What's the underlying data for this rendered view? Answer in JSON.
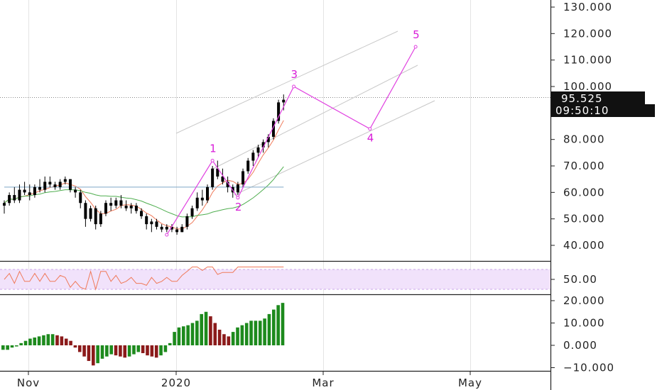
{
  "chart_data": [
    {
      "type": "candlestick",
      "panel": "price",
      "y_ticks": [
        "130.000",
        "120.000",
        "110.000",
        "100.000",
        "80.000",
        "70.000",
        "60.000",
        "50.000",
        "40.000"
      ],
      "ylim": [
        35,
        133
      ],
      "price_line": 95.525,
      "badges": {
        "price": "95.525",
        "time": "09:50:10"
      },
      "x_ticks": [
        "Nov",
        "2020",
        "Mar",
        "May"
      ],
      "candles": [
        [
          0,
          55,
          57,
          52,
          56
        ],
        [
          1,
          56,
          60,
          55,
          59
        ],
        [
          2,
          59,
          62,
          56,
          57
        ],
        [
          3,
          57,
          63,
          56,
          61
        ],
        [
          4,
          61,
          64,
          59,
          60
        ],
        [
          5,
          60,
          63,
          57,
          59
        ],
        [
          6,
          59,
          63,
          58,
          62
        ],
        [
          7,
          62,
          65,
          60,
          61
        ],
        [
          8,
          61,
          66,
          60,
          64
        ],
        [
          9,
          64,
          66,
          62,
          63
        ],
        [
          10,
          63,
          64,
          61,
          62
        ],
        [
          11,
          62,
          65,
          61,
          64
        ],
        [
          12,
          64,
          66,
          63,
          65
        ],
        [
          13,
          65,
          65,
          60,
          61
        ],
        [
          14,
          61,
          62,
          58,
          60
        ],
        [
          15,
          60,
          61,
          54,
          56
        ],
        [
          16,
          56,
          57,
          47,
          50
        ],
        [
          17,
          50,
          55,
          49,
          54
        ],
        [
          18,
          54,
          55,
          46,
          48
        ],
        [
          19,
          48,
          53,
          47,
          52
        ],
        [
          20,
          52,
          57,
          51,
          56
        ],
        [
          21,
          56,
          58,
          53,
          55
        ],
        [
          22,
          55,
          58,
          54,
          57
        ],
        [
          23,
          57,
          59,
          54,
          55
        ],
        [
          24,
          55,
          57,
          53,
          54
        ],
        [
          25,
          54,
          56,
          52,
          55
        ],
        [
          26,
          55,
          56,
          52,
          53
        ],
        [
          27,
          53,
          54,
          50,
          51
        ],
        [
          28,
          51,
          52,
          46,
          48
        ],
        [
          29,
          48,
          50,
          45,
          49
        ],
        [
          30,
          49,
          50,
          46,
          47
        ],
        [
          31,
          47,
          48,
          45,
          46
        ],
        [
          32,
          46,
          48,
          45,
          47
        ],
        [
          33,
          47,
          48,
          45,
          46
        ],
        [
          34,
          46,
          47,
          44,
          45
        ],
        [
          35,
          45,
          48,
          45,
          47
        ],
        [
          36,
          47,
          52,
          46,
          51
        ],
        [
          37,
          51,
          55,
          50,
          54
        ],
        [
          38,
          54,
          60,
          53,
          58
        ],
        [
          39,
          58,
          61,
          55,
          57
        ],
        [
          40,
          57,
          63,
          56,
          62
        ],
        [
          41,
          62,
          70,
          61,
          69
        ],
        [
          42,
          69,
          72,
          65,
          66
        ],
        [
          43,
          66,
          69,
          63,
          64
        ],
        [
          44,
          64,
          66,
          60,
          62
        ],
        [
          45,
          62,
          63,
          58,
          60
        ],
        [
          46,
          60,
          64,
          59,
          63
        ],
        [
          47,
          63,
          69,
          62,
          68
        ],
        [
          48,
          68,
          73,
          67,
          72
        ],
        [
          49,
          72,
          76,
          70,
          75
        ],
        [
          50,
          75,
          78,
          73,
          77
        ],
        [
          51,
          77,
          80,
          75,
          79
        ],
        [
          52,
          79,
          82,
          77,
          81
        ],
        [
          53,
          81,
          88,
          80,
          87
        ],
        [
          54,
          87,
          95,
          86,
          94
        ],
        [
          55,
          94,
          97,
          91,
          95
        ]
      ],
      "moving_averages": [
        {
          "name": "fast",
          "color": "#f07a5a"
        },
        {
          "name": "medium",
          "color": "#4fae4f"
        },
        {
          "name": "slow",
          "color": "#7fa9c7"
        }
      ],
      "elliott_wave": {
        "labels": [
          "1",
          "2",
          "3",
          "4",
          "5"
        ],
        "points": [
          {
            "x": 32,
            "y": 44
          },
          {
            "x": 41,
            "y": 72
          },
          {
            "x": 46,
            "y": 58
          },
          {
            "x": 57,
            "y": 100
          },
          {
            "x": 72,
            "y": 84
          },
          {
            "x": 81,
            "y": 115
          }
        ]
      }
    },
    {
      "type": "line",
      "panel": "rsi",
      "y_ticks": [
        "50.00"
      ],
      "band": [
        30,
        70
      ]
    },
    {
      "type": "bar",
      "panel": "histogram",
      "y_ticks": [
        "20.000",
        "10.000",
        "0.000",
        "−10.000"
      ],
      "ylim": [
        -11,
        21
      ],
      "values": [
        -2,
        -2,
        -1,
        -0.5,
        1,
        2,
        3,
        3.5,
        4,
        4.5,
        5,
        5,
        4.5,
        4,
        3,
        2,
        -1,
        -3,
        -5,
        -7,
        -9,
        -8,
        -6,
        -5,
        -4,
        -4.5,
        -5,
        -5.5,
        -5,
        -4,
        -3,
        -3.5,
        -4.5,
        -5,
        -5.5,
        -4.5,
        -3,
        1,
        6,
        8,
        8.5,
        9,
        10,
        11,
        14,
        15,
        13,
        10,
        7,
        5,
        4,
        6,
        8,
        9,
        10,
        11,
        11,
        11,
        12,
        14,
        16,
        18,
        19
      ]
    }
  ]
}
